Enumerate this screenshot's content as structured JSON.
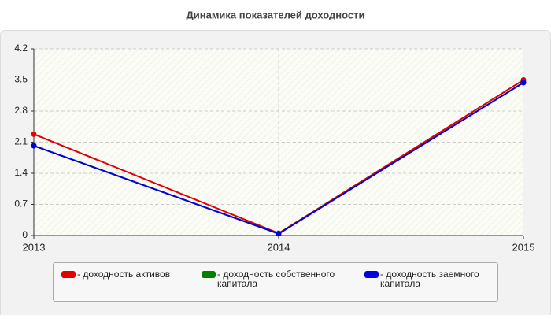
{
  "chart_data": {
    "type": "line",
    "title": "Динамика показателей доходности",
    "categories": [
      "2013",
      "2014",
      "2015"
    ],
    "series": [
      {
        "name": "- доходность активов",
        "color": "#e00000",
        "values": [
          2.28,
          0.05,
          3.5
        ]
      },
      {
        "name": "- доходность собственного капитала",
        "color": "#008000",
        "values": [
          2.02,
          0.04,
          3.44
        ]
      },
      {
        "name": "- доходность заемного капитала",
        "color": "#0000e0",
        "values": [
          2.02,
          0.04,
          3.44
        ]
      }
    ],
    "ylim": [
      0,
      4.2
    ],
    "yticks": [
      0,
      0.7,
      1.4,
      2.1,
      2.8,
      3.5,
      4.2
    ],
    "grid": true
  }
}
